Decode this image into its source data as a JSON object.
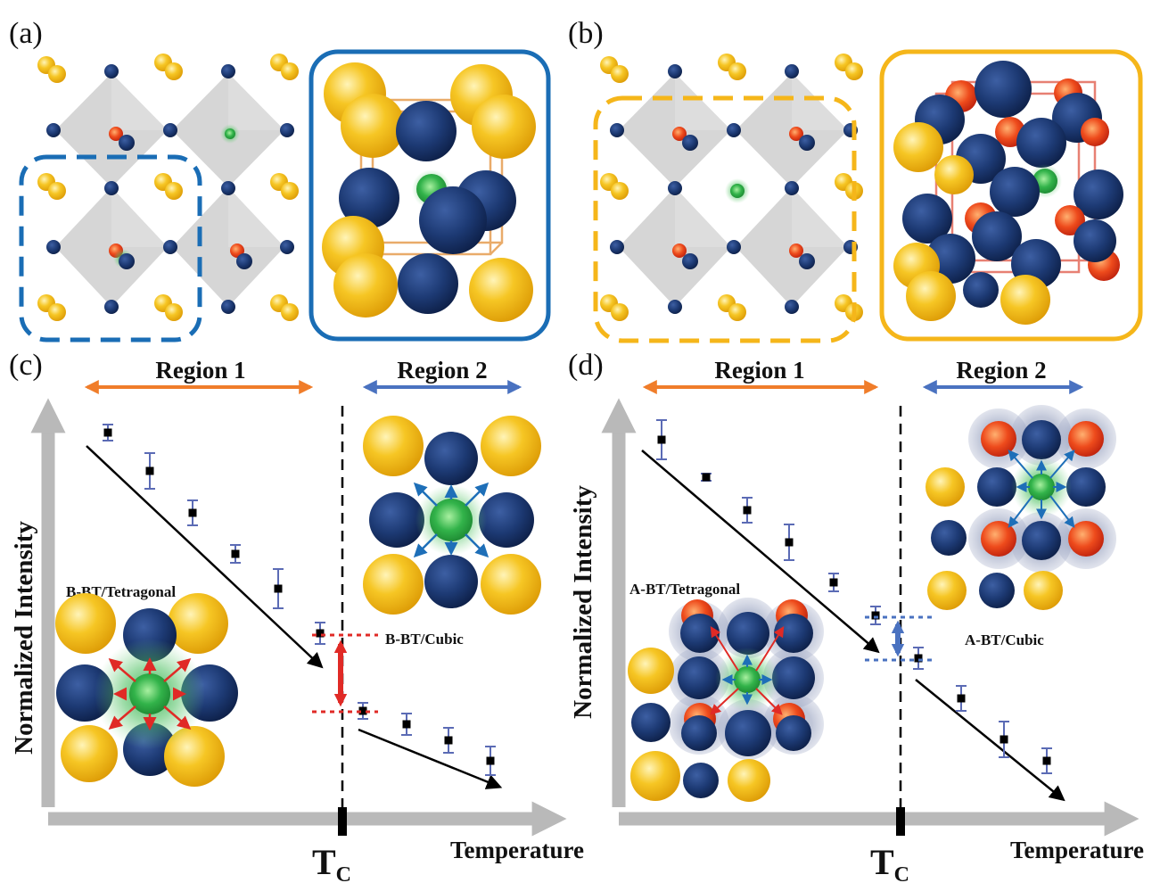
{
  "panels": {
    "a": "(a)",
    "b": "(b)",
    "c": "(c)",
    "d": "(d)"
  },
  "colors": {
    "a_site_yellow": "#f2b90f",
    "ti_navy": "#1d3a74",
    "o_red": "#e4351c",
    "dopant_green": "#32b34a",
    "bt_blue": "#1a6db5",
    "at_yellow": "#f5b61a",
    "region1_orange": "#f07d2a",
    "region2_blue": "#4a72c0",
    "error_bar": "#5b6bb5",
    "axis_grey": "#b9b9b9"
  },
  "plot_c": {
    "region1": "Region 1",
    "region2": "Region 2",
    "ylabel": "Normalized Intensity",
    "xlabel": "Temperature",
    "tc": "T",
    "tc_sub": "C",
    "label_low": "B-BT/Tetragonal",
    "label_high": "B-BT/Cubic"
  },
  "plot_d": {
    "region1": "Region 1",
    "region2": "Region 2",
    "ylabel": "Normalized Intensity",
    "xlabel": "Temperature",
    "tc": "T",
    "tc_sub": "C",
    "label_low": "A-BT/Tetragonal",
    "label_high": "A-BT/Cubic"
  }
}
